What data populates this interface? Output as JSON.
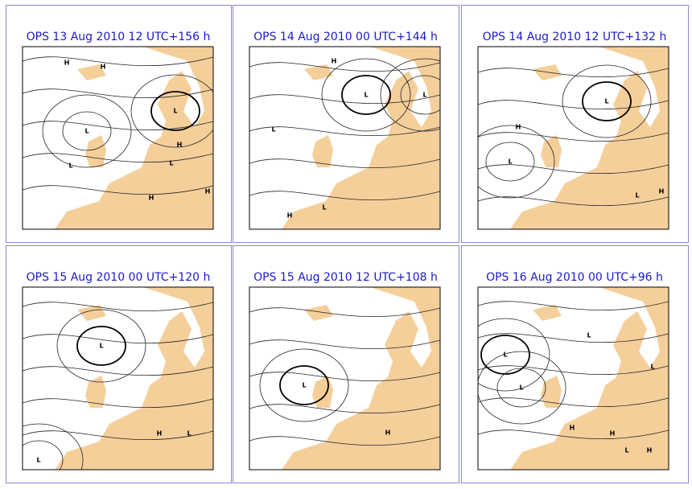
{
  "panels": [
    {
      "title": "OPS 13 Aug 2010 12 UTC+156 h",
      "labels": [
        "H",
        "H",
        "L",
        "L",
        "L",
        "H",
        "L",
        "H",
        "H"
      ]
    },
    {
      "title": "OPS 14 Aug 2010 00 UTC+144 h",
      "labels": [
        "H",
        "L",
        "L",
        "L",
        "H",
        "L"
      ]
    },
    {
      "title": "OPS 14 Aug 2010 12 UTC+132 h",
      "labels": [
        "L",
        "H",
        "L",
        "L",
        "H"
      ]
    },
    {
      "title": "OPS 15 Aug 2010 00 UTC+120 h",
      "labels": [
        "L",
        "L",
        "H",
        "L"
      ]
    },
    {
      "title": "OPS 15 Aug 2010 12 UTC+108 h",
      "labels": [
        "L",
        "H"
      ]
    },
    {
      "title": "OPS 16 Aug 2010 00 UTC+96 h",
      "labels": [
        "L",
        "L",
        "L",
        "H",
        "H",
        "L",
        "H",
        "L"
      ]
    }
  ]
}
